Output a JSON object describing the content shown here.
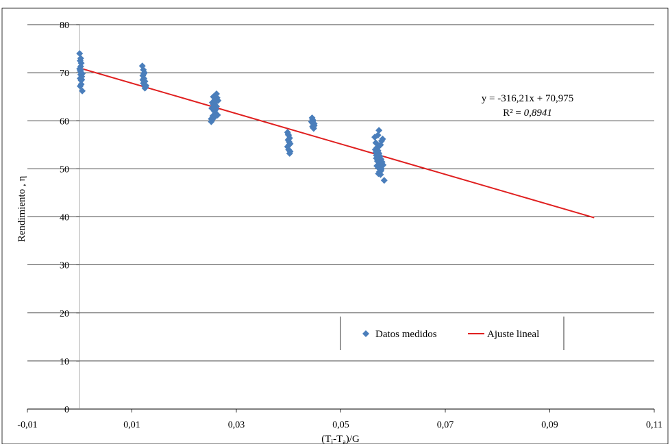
{
  "chart_data": {
    "type": "scatter",
    "title": "",
    "xlabel": "(Ti-Ta)/G",
    "xlabel_parts": {
      "base1": "(T",
      "sub1": "i",
      "mid": "-T",
      "sub2": "a",
      "end": ")/G"
    },
    "ylabel": "Rendimiento , η",
    "xlim": [
      -0.01,
      0.11
    ],
    "ylim": [
      0,
      80
    ],
    "xticks": [
      -0.01,
      0.01,
      0.03,
      0.05,
      0.07,
      0.09,
      0.11
    ],
    "xtick_labels": [
      "-0,01",
      "0,01",
      "0,03",
      "0,05",
      "0,07",
      "0,09",
      "0,11"
    ],
    "yticks": [
      0,
      10,
      20,
      30,
      40,
      50,
      60,
      70,
      80
    ],
    "ytick_labels": [
      "0",
      "10",
      "20",
      "30",
      "40",
      "50",
      "60",
      "70",
      "80"
    ],
    "grid": {
      "horizontal": true,
      "vertical": false
    },
    "legend_position": "bottom-right",
    "series": [
      {
        "name": "Datos medidos",
        "kind": "scatter",
        "color": "#4a7ebb",
        "marker": "diamond",
        "x": [
          0.0,
          0.0002,
          0.0001,
          0.0003,
          0.0002,
          0.0,
          0.0001,
          0.0003,
          0.0002,
          0.0004,
          0.0001,
          0.0003,
          0.0005,
          0.0002,
          0.0004,
          0.0003,
          0.0001,
          0.0005,
          0.012,
          0.0122,
          0.0124,
          0.0121,
          0.0123,
          0.0125,
          0.0122,
          0.0124,
          0.0126,
          0.0121,
          0.0123,
          0.0125,
          0.0127,
          0.0252,
          0.0255,
          0.0258,
          0.0262,
          0.0265,
          0.0253,
          0.0256,
          0.026,
          0.0263,
          0.0254,
          0.0257,
          0.0261,
          0.0264,
          0.0252,
          0.0256,
          0.0259,
          0.0262,
          0.0255,
          0.0258,
          0.0398,
          0.04,
          0.0402,
          0.0399,
          0.0401,
          0.0403,
          0.0398,
          0.04,
          0.0402,
          0.0399,
          0.0401,
          0.0403,
          0.0445,
          0.0447,
          0.0449,
          0.0446,
          0.0448,
          0.0444,
          0.0446,
          0.0449,
          0.0447,
          0.0445,
          0.0565,
          0.0567,
          0.0569,
          0.0571,
          0.0573,
          0.0575,
          0.0577,
          0.0579,
          0.0581,
          0.0566,
          0.0568,
          0.057,
          0.0572,
          0.0574,
          0.0576,
          0.0578,
          0.058,
          0.0567,
          0.0569,
          0.0571,
          0.0573,
          0.0575,
          0.0577,
          0.0568,
          0.057,
          0.0572,
          0.0574,
          0.0576,
          0.0578,
          0.0583
        ],
        "y": [
          74.0,
          73.0,
          72.5,
          72.0,
          71.3,
          70.8,
          70.4,
          70.0,
          69.6,
          69.2,
          68.8,
          68.4,
          69.8,
          70.6,
          68.6,
          67.6,
          67.2,
          66.2,
          71.4,
          70.6,
          70.0,
          69.4,
          68.8,
          68.2,
          67.8,
          67.4,
          67.0,
          68.5,
          69.8,
          66.8,
          67.3,
          59.8,
          61.0,
          62.0,
          63.0,
          64.2,
          62.6,
          63.4,
          61.6,
          64.8,
          63.8,
          60.6,
          62.4,
          61.2,
          60.4,
          65.0,
          64.4,
          65.6,
          62.8,
          63.6,
          57.6,
          57.0,
          56.4,
          56.0,
          55.6,
          55.2,
          54.6,
          54.0,
          53.2,
          57.2,
          55.0,
          53.6,
          60.6,
          60.0,
          59.4,
          58.8,
          58.4,
          59.8,
          60.2,
          59.0,
          58.6,
          59.6,
          56.6,
          55.4,
          54.4,
          53.8,
          53.2,
          52.6,
          52.0,
          51.4,
          50.8,
          54.0,
          52.8,
          51.6,
          50.2,
          49.4,
          48.8,
          55.8,
          56.2,
          53.4,
          50.6,
          57.0,
          58.0,
          51.0,
          49.6,
          52.2,
          53.6,
          49.0,
          54.8,
          55.0,
          50.0,
          47.6
        ]
      },
      {
        "name": "Ajuste lineal",
        "kind": "line",
        "color": "#e02020",
        "x": [
          0.0,
          0.0985
        ],
        "y": [
          70.975,
          39.83
        ]
      }
    ],
    "annotations": {
      "equation": "y = -316,21x + 70,975",
      "r2_label": "R² = ",
      "r2_value": "0,8941"
    }
  }
}
